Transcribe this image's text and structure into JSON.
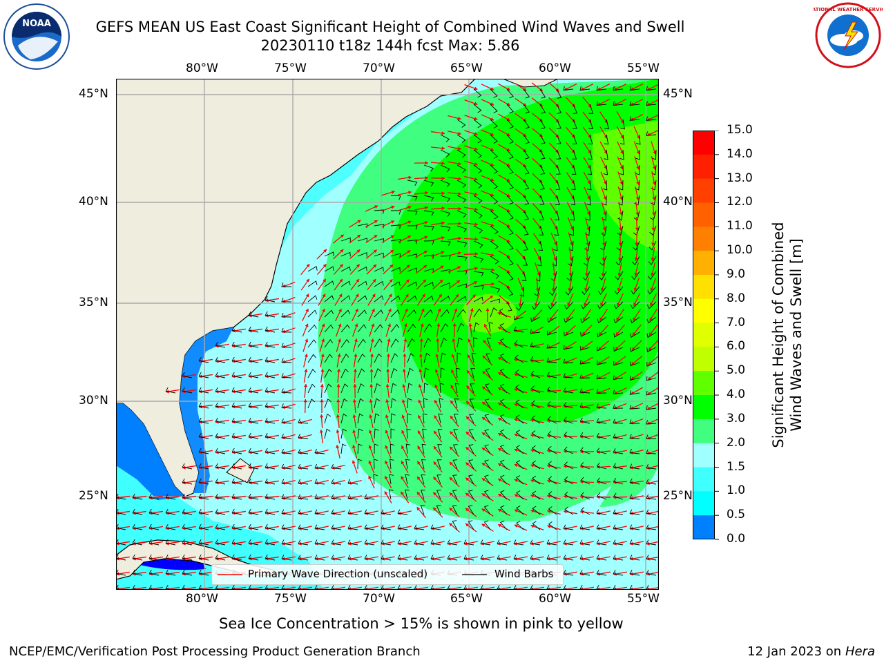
{
  "header": {
    "title_line1": "GEFS MEAN US East Coast Significant Height of Combined Wind Waves and Swell",
    "title_line2": "20230110 t18z 144h fcst   Max: 5.86",
    "logo_left_text": "NOAA",
    "logo_right_text": "NATIONAL WEATHER SERVICE"
  },
  "map": {
    "lon_labels": [
      "80°W",
      "75°W",
      "70°W",
      "65°W",
      "60°W",
      "55°W"
    ],
    "lat_labels": [
      "45°N",
      "40°N",
      "35°N",
      "30°N",
      "25°N"
    ],
    "colors": {
      "land": "#efedde",
      "wave_0_05": "#0000ff",
      "wave_05_1": "#0080ff",
      "wave_1_15": "#00ffff",
      "wave_15_2": "#40ffff",
      "wave_2_3": "#a0ffff",
      "wave_3_4": "#40ff80",
      "wave_4_5": "#00ff00",
      "wave_5_6": "#60ff00",
      "arrow": "#ff0000",
      "barb": "#000000"
    }
  },
  "legend": {
    "primary_wave": "Primary Wave Direction (unscaled)",
    "wind_barbs": "Wind Barbs"
  },
  "colorbar": {
    "label_line1": "Significant Height of Combined",
    "label_line2": "Wind Waves and Swell [m]",
    "ticks": [
      "15.0",
      "14.0",
      "13.0",
      "12.0",
      "11.0",
      "10.0",
      "9.0",
      "8.0",
      "7.0",
      "6.0",
      "5.0",
      "4.0",
      "3.0",
      "2.0",
      "1.5",
      "1.0",
      "0.5",
      "0.0"
    ],
    "colors": [
      "#ff0000",
      "#ff2000",
      "#ff4000",
      "#ff6000",
      "#ff8000",
      "#ffb000",
      "#ffe000",
      "#ffff00",
      "#e0ff00",
      "#c0ff00",
      "#60ff00",
      "#00ff00",
      "#40ff80",
      "#a0ffff",
      "#40ffff",
      "#00ffff",
      "#0080ff",
      "#0000ff"
    ]
  },
  "footer": {
    "sea_ice": "Sea Ice Concentration > 15% is shown in pink to yellow",
    "branch": "NCEP/EMC/Verification Post Processing Product Generation Branch",
    "date": "12 Jan 2023 on ",
    "host": "Hera"
  }
}
